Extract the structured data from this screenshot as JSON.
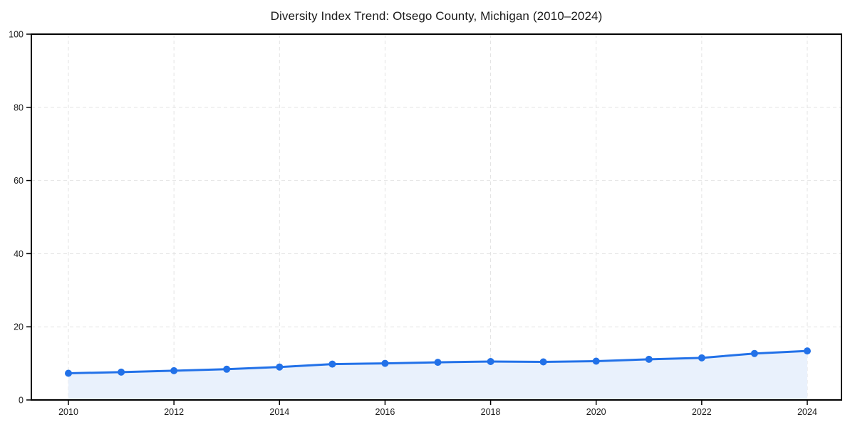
{
  "chart_data": {
    "type": "line",
    "area_fill": true,
    "title": "Diversity Index Trend: Otsego County, Michigan (2010–2024)",
    "x": [
      2010,
      2011,
      2012,
      2013,
      2014,
      2015,
      2016,
      2017,
      2018,
      2019,
      2020,
      2021,
      2022,
      2023,
      2024
    ],
    "series": [
      {
        "name": "Diversity Index",
        "values": [
          7.3,
          7.6,
          8.0,
          8.4,
          9.0,
          9.8,
          10.0,
          10.3,
          10.5,
          10.4,
          10.6,
          11.1,
          11.5,
          12.7,
          13.4
        ]
      }
    ],
    "xlabel": "",
    "ylabel": "",
    "xlim": [
      2009.3,
      2024.65
    ],
    "ylim": [
      0,
      100
    ],
    "xticks": [
      2010,
      2012,
      2014,
      2016,
      2018,
      2020,
      2022,
      2024
    ],
    "yticks": [
      0,
      20,
      40,
      60,
      80,
      100
    ],
    "grid": "dashed",
    "legend": "none",
    "marker": "circle",
    "colors": {
      "line": "#2271e8",
      "marker": "#2271e8",
      "fill": "#e9f1fc",
      "grid": "#e3e3e3",
      "axis_frame": "#000000",
      "title_text": "#1a1a1a",
      "tick_text": "#1a1a1a",
      "background": "#ffffff"
    }
  }
}
